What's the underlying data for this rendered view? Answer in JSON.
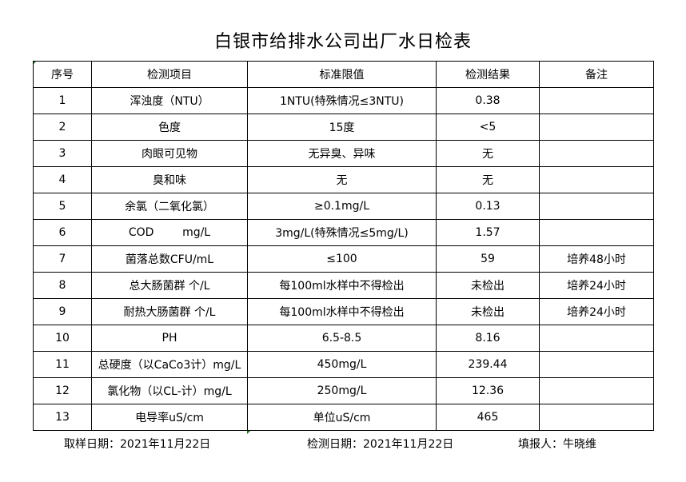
{
  "title": "白银市给排水公司出厂水日检表",
  "headers": [
    "序号",
    "检测项目",
    "标准限值",
    "检测结果",
    "备注"
  ],
  "rows": [
    [
      "1",
      "浑浊度（NTU）",
      "1NTU(特殊情况≤3NTU)",
      "0.38",
      ""
    ],
    [
      "2",
      "色度",
      "15度",
      "<5",
      ""
    ],
    [
      "3",
      "肉眼可见物",
      "无异臭、异味",
      "无",
      ""
    ],
    [
      "4",
      "臭和味",
      "无",
      "无",
      ""
    ],
    [
      "5",
      "余氯（二氧化氯）",
      "≥0.1mg/L",
      "0.13",
      ""
    ],
    [
      "6",
      "COD        mg/L",
      "3mg/L(特殊情况≤5mg/L)",
      "1.57",
      ""
    ],
    [
      "7",
      "菌落总数CFU/mL",
      "≤100",
      "59",
      "培养48小时"
    ],
    [
      "8",
      "总大肠菌群 个/L",
      "每100ml水样中不得检出",
      "未检出",
      "培养24小时"
    ],
    [
      "9",
      "耐热大肠菌群 个/L",
      "每100ml水样中不得检出",
      "未检出",
      "培养24小时"
    ],
    [
      "10",
      "PH",
      "6.5-8.5",
      "8.16",
      ""
    ],
    [
      "11",
      "总硬度（以CaCo3计）mg/L",
      "450mg/L",
      "239.44",
      ""
    ],
    [
      "12",
      "氯化物（以CL-计）mg/L",
      "250mg/L",
      "12.36",
      ""
    ],
    [
      "13",
      "电导率uS/cm",
      "单位uS/cm",
      "465",
      ""
    ]
  ],
  "footer": {
    "sample_date": "取样日期：2021年11月22日",
    "test_date": "检测日期：2021年11月22日",
    "reporter": "填报人：牛晓维"
  }
}
